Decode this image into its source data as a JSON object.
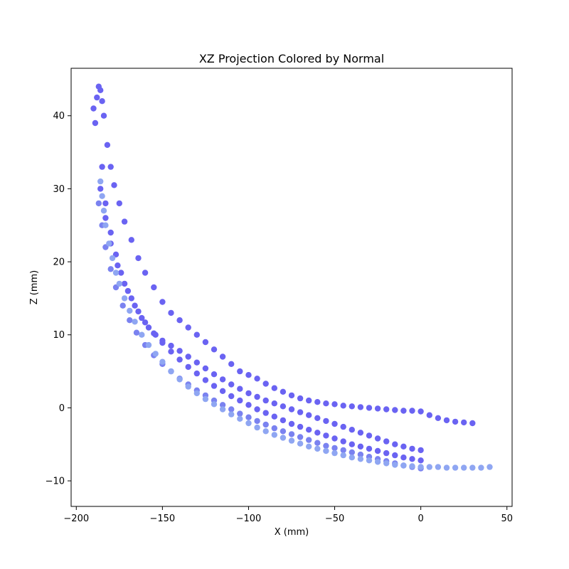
{
  "chart_data": {
    "type": "scatter",
    "title": "XZ Projection Colored by Normal",
    "xlabel": "X (mm)",
    "ylabel": "Z (mm)",
    "xlim": [
      -203,
      53
    ],
    "ylim": [
      -13.5,
      46.5
    ],
    "xticks": [
      -200,
      -150,
      -100,
      -50,
      0,
      50
    ],
    "xtick_labels": [
      "−200",
      "−150",
      "−100",
      "−50",
      "0",
      "50"
    ],
    "yticks": [
      -10,
      0,
      10,
      20,
      30,
      40
    ],
    "ytick_labels": [
      "−10",
      "0",
      "10",
      "20",
      "30",
      "40"
    ],
    "grid": false,
    "legend": "none",
    "colors": {
      "dark_normal": "#6a63f2",
      "mid_normal": "#7a82f0",
      "light_normal": "#8fa6f2"
    },
    "series": [
      {
        "color": "#6a63f2",
        "x": [
          -190,
          -189,
          -188,
          -187,
          -186,
          -185,
          -184,
          -182,
          -180,
          -178,
          -175,
          -172,
          -168,
          -164,
          -160,
          -155,
          -150,
          -145,
          -140,
          -135,
          -130,
          -125,
          -120,
          -115,
          -110,
          -105,
          -100,
          -95,
          -90,
          -85,
          -80,
          -75,
          -70,
          -65,
          -60,
          -55,
          -50,
          -45,
          -40,
          -35,
          -30,
          -25,
          -20,
          -15,
          -10,
          -5,
          0,
          5,
          10,
          15,
          20,
          25,
          30
        ],
        "y": [
          41.0,
          39.0,
          42.5,
          44.0,
          43.5,
          42.0,
          40.0,
          36.0,
          33.0,
          30.5,
          28.0,
          25.5,
          23.0,
          20.5,
          18.5,
          16.5,
          14.5,
          13.0,
          12.0,
          11.0,
          10.0,
          9.0,
          8.0,
          7.0,
          6.0,
          5.0,
          4.5,
          4.0,
          3.3,
          2.7,
          2.2,
          1.7,
          1.3,
          1.0,
          0.8,
          0.6,
          0.5,
          0.3,
          0.2,
          0.1,
          0.0,
          -0.1,
          -0.2,
          -0.3,
          -0.4,
          -0.4,
          -0.5,
          -1.0,
          -1.4,
          -1.7,
          -1.9,
          -2.0,
          -2.1
        ]
      },
      {
        "color": "#6a63f2",
        "x": [
          -185,
          -183,
          -180,
          -177,
          -174,
          -170,
          -166,
          -162,
          -158,
          -154,
          -150,
          -145,
          -140,
          -135,
          -130,
          -125,
          -120,
          -115,
          -110,
          -105,
          -100,
          -95,
          -90,
          -85,
          -80,
          -75,
          -70,
          -65,
          -60,
          -55,
          -50,
          -45,
          -40,
          -35,
          -30,
          -25,
          -20,
          -15,
          -10,
          -5,
          0
        ],
        "y": [
          33.0,
          28.0,
          24.0,
          21.0,
          18.5,
          16.0,
          14.0,
          12.3,
          11.0,
          10.0,
          9.2,
          8.5,
          7.8,
          7.0,
          6.2,
          5.4,
          4.6,
          3.9,
          3.2,
          2.6,
          2.0,
          1.5,
          1.0,
          0.6,
          0.2,
          -0.2,
          -0.6,
          -1.0,
          -1.4,
          -1.8,
          -2.2,
          -2.6,
          -3.0,
          -3.4,
          -3.8,
          -4.2,
          -4.6,
          -5.0,
          -5.3,
          -5.6,
          -5.8
        ]
      },
      {
        "color": "#6a63f2",
        "x": [
          -186,
          -183,
          -180,
          -176,
          -172,
          -168,
          -164,
          -160,
          -155,
          -150,
          -145,
          -140,
          -135,
          -130,
          -125,
          -120,
          -115,
          -110,
          -105,
          -100,
          -95,
          -90,
          -85,
          -80,
          -75,
          -70,
          -65,
          -60,
          -55,
          -50,
          -45,
          -40,
          -35,
          -30,
          -25,
          -20,
          -15,
          -10,
          -5,
          0
        ],
        "y": [
          30.0,
          26.0,
          22.5,
          19.5,
          17.0,
          15.0,
          13.2,
          11.7,
          10.2,
          8.9,
          7.7,
          6.6,
          5.6,
          4.7,
          3.8,
          3.0,
          2.3,
          1.6,
          1.0,
          0.4,
          -0.2,
          -0.7,
          -1.2,
          -1.7,
          -2.2,
          -2.6,
          -3.0,
          -3.4,
          -3.8,
          -4.2,
          -4.6,
          -5.0,
          -5.3,
          -5.6,
          -5.9,
          -6.2,
          -6.5,
          -6.8,
          -7.0,
          -7.2
        ]
      },
      {
        "color": "#7a82f0",
        "x": [
          -187,
          -185,
          -183,
          -180,
          -177,
          -173,
          -169,
          -165,
          -160,
          -155,
          -150,
          -145,
          -140,
          -135,
          -130,
          -125,
          -120,
          -115,
          -110,
          -105,
          -100,
          -95,
          -90,
          -85,
          -80,
          -75,
          -70,
          -65,
          -60,
          -55,
          -50,
          -45,
          -40,
          -35,
          -30,
          -25,
          -20,
          -15,
          -10,
          -5,
          0
        ],
        "y": [
          28.0,
          25.0,
          22.0,
          19.0,
          16.5,
          14.0,
          12.0,
          10.3,
          8.6,
          7.2,
          6.0,
          5.0,
          4.0,
          3.2,
          2.4,
          1.7,
          1.0,
          0.4,
          -0.2,
          -0.8,
          -1.3,
          -1.8,
          -2.3,
          -2.8,
          -3.2,
          -3.6,
          -4.0,
          -4.4,
          -4.8,
          -5.2,
          -5.5,
          -5.8,
          -6.1,
          -6.4,
          -6.7,
          -7.0,
          -7.3,
          -7.6,
          -7.9,
          -8.1,
          -8.3
        ]
      },
      {
        "color": "#8fa6f2",
        "x": [
          -186,
          -185,
          -184,
          -183,
          -181,
          -179,
          -177,
          -175,
          -172,
          -169,
          -166,
          -162,
          -158,
          -154,
          -150,
          -145,
          -140,
          -135,
          -130,
          -125,
          -120,
          -115,
          -110,
          -105,
          -100,
          -95,
          -90,
          -85,
          -80,
          -75,
          -70,
          -65,
          -60,
          -55,
          -50,
          -45,
          -40,
          -35,
          -30,
          -25,
          -20,
          -15,
          -10,
          -5,
          0,
          5,
          10,
          15,
          20,
          25,
          30,
          35,
          40
        ],
        "y": [
          31.0,
          29.0,
          27.0,
          25.0,
          22.5,
          20.5,
          18.5,
          17.0,
          15.0,
          13.3,
          11.8,
          10.0,
          8.6,
          7.4,
          6.3,
          5.0,
          3.9,
          2.9,
          2.0,
          1.2,
          0.5,
          -0.2,
          -0.9,
          -1.5,
          -2.1,
          -2.7,
          -3.2,
          -3.7,
          -4.1,
          -4.5,
          -4.9,
          -5.3,
          -5.6,
          -5.9,
          -6.2,
          -6.5,
          -6.8,
          -7.0,
          -7.2,
          -7.4,
          -7.6,
          -7.8,
          -7.9,
          -8.0,
          -8.1,
          -8.1,
          -8.1,
          -8.2,
          -8.2,
          -8.2,
          -8.2,
          -8.2,
          -8.1
        ]
      }
    ]
  }
}
